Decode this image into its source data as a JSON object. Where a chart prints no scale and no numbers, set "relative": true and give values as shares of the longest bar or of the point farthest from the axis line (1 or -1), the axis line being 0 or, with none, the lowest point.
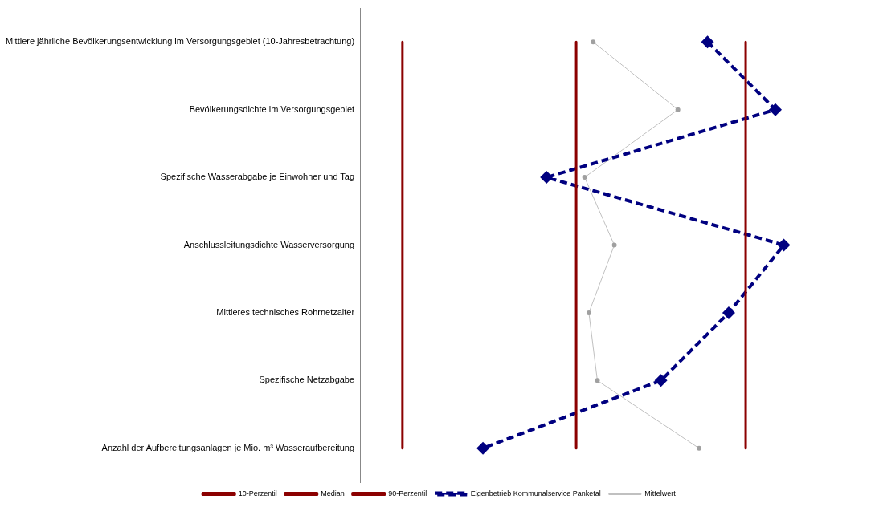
{
  "chart_data": {
    "type": "line",
    "orientation": "horizontal",
    "relative": true,
    "legend": "bottom",
    "grid": false,
    "categories": [
      "Mittlere jährliche Bevölkerungsentwicklung im Versorgungsgebiet (10-Jahresbetrachtung)",
      "Bevölkerungsdichte im Versorgungsgebiet",
      "Spezifische Wasserabgabe je Einwohner und Tag",
      "Anschlussleitungsdichte Wasserversorgung",
      "Mittleres technisches Rohrnetzalter",
      "Spezifische Netzabgabe",
      "Anzahl der Aufbereitungsanlagen je Mio. m³ Wasseraufbereitung"
    ],
    "series": [
      {
        "name": "10-Perzentil",
        "color": "#8b0000",
        "marker": "none",
        "line_style": "solid",
        "values": [
          0.1,
          0.1,
          0.1,
          0.1,
          0.1,
          0.1,
          0.1
        ]
      },
      {
        "name": "Median",
        "color": "#8b0000",
        "marker": "none",
        "line_style": "solid",
        "values": [
          0.51,
          0.51,
          0.51,
          0.51,
          0.51,
          0.51,
          0.51
        ]
      },
      {
        "name": "90-Perzentil",
        "color": "#8b0000",
        "marker": "none",
        "line_style": "solid",
        "values": [
          0.91,
          0.91,
          0.91,
          0.91,
          0.91,
          0.91,
          0.91
        ]
      },
      {
        "name": "Eigenbetrieb Kommunalservice Panketal",
        "color": "#000080",
        "marker": "diamond",
        "line_style": "dashed",
        "values": [
          0.82,
          0.98,
          0.44,
          1,
          0.87,
          0.71,
          0.29
        ]
      },
      {
        "name": "Mittelwert",
        "color": "#c0c0c0",
        "marker": "circle",
        "line_style": "solid",
        "values": [
          0.55,
          0.75,
          0.53,
          0.6,
          0.54,
          0.56,
          0.8
        ]
      }
    ]
  }
}
